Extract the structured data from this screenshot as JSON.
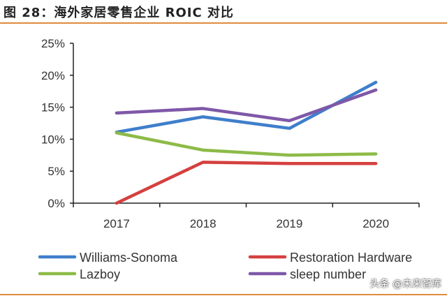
{
  "title": "图 28：海外家居零售企业 ROIC 对比",
  "watermark": "头条 @未来智库",
  "chart_data": {
    "type": "line",
    "title": "图 28：海外家居零售企业 ROIC 对比",
    "xlabel": "",
    "ylabel": "",
    "categories": [
      "2017",
      "2018",
      "2019",
      "2020"
    ],
    "y_ticks": [
      "0%",
      "5%",
      "10%",
      "15%",
      "20%",
      "25%"
    ],
    "ylim": [
      0,
      25
    ],
    "grid": false,
    "legend_position": "bottom",
    "series": [
      {
        "name": "Williams-Sonoma",
        "color": "#3f7fcb",
        "values": [
          11.1,
          13.5,
          11.7,
          18.9
        ]
      },
      {
        "name": "Restoration Hardware",
        "color": "#d4403f",
        "values": [
          0,
          6.4,
          6.2,
          6.2
        ]
      },
      {
        "name": "Lazboy",
        "color": "#8dbb48",
        "values": [
          11.0,
          8.3,
          7.5,
          7.7
        ]
      },
      {
        "name": "sleep number",
        "color": "#7f58a8",
        "values": [
          14.1,
          14.8,
          12.9,
          17.7
        ]
      }
    ]
  }
}
